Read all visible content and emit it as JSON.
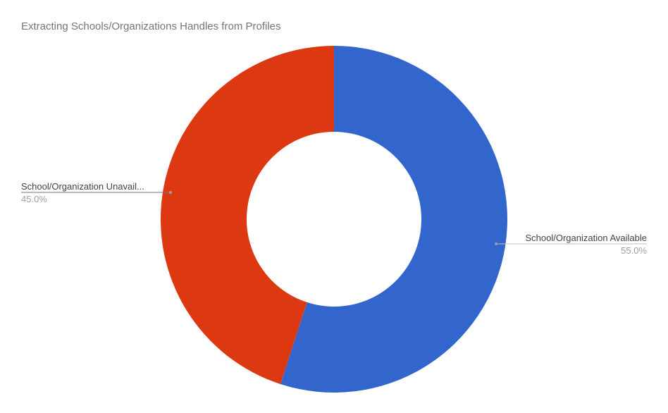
{
  "chart_data": {
    "type": "pie",
    "donut": true,
    "title": "Extracting Schools/Organizations Handles from Profiles",
    "slices": [
      {
        "label": "School/Organization Available",
        "display_label": "School/Organization Available",
        "value": 55.0,
        "percent_label": "55.0%",
        "color": "#3366cc"
      },
      {
        "label": "School/Organization Unavailable",
        "display_label": "School/Organization Unavail...",
        "value": 45.0,
        "percent_label": "45.0%",
        "color": "#dc3912"
      }
    ],
    "start_angle": "top, clockwise",
    "legend": "none (labeled slices)"
  }
}
